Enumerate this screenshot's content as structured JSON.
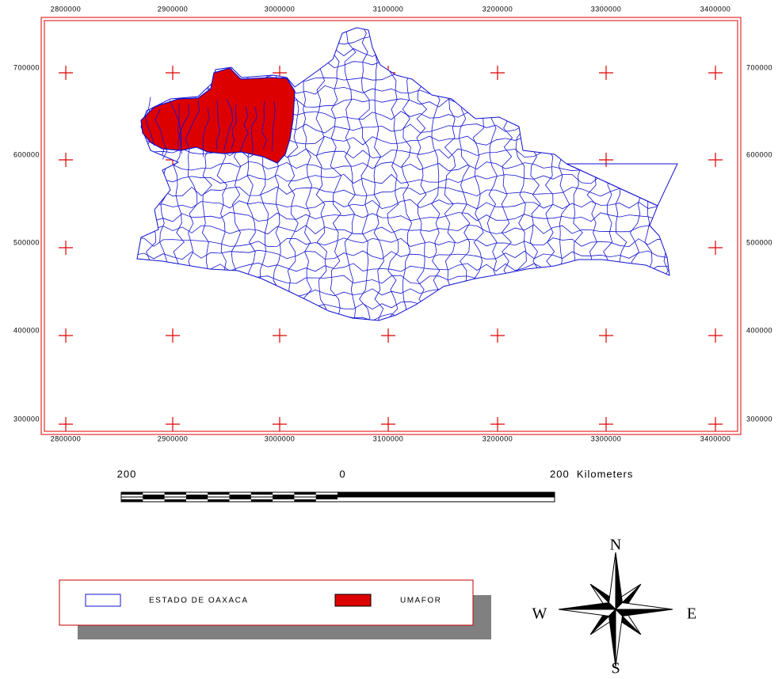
{
  "map": {
    "top_labels": [
      2800000,
      2900000,
      3000000,
      3100000,
      3200000,
      3300000,
      3400000
    ],
    "left_labels": [
      700000,
      600000,
      500000,
      400000,
      300000
    ],
    "right_labels": [
      700000,
      600000,
      500000,
      400000,
      300000
    ],
    "bottom_labels": [
      2800000,
      2900000,
      3000000,
      3100000,
      3200000,
      3300000,
      3400000
    ],
    "scale": {
      "left": "200",
      "middle": "0",
      "right": "200  Kilometers"
    },
    "legend": [
      {
        "label": "ESTADO DE OAXACA"
      },
      {
        "label": "UMAFOR"
      }
    ],
    "compass": {
      "n": "N",
      "s": "S",
      "e": "E",
      "w": "W"
    }
  }
}
